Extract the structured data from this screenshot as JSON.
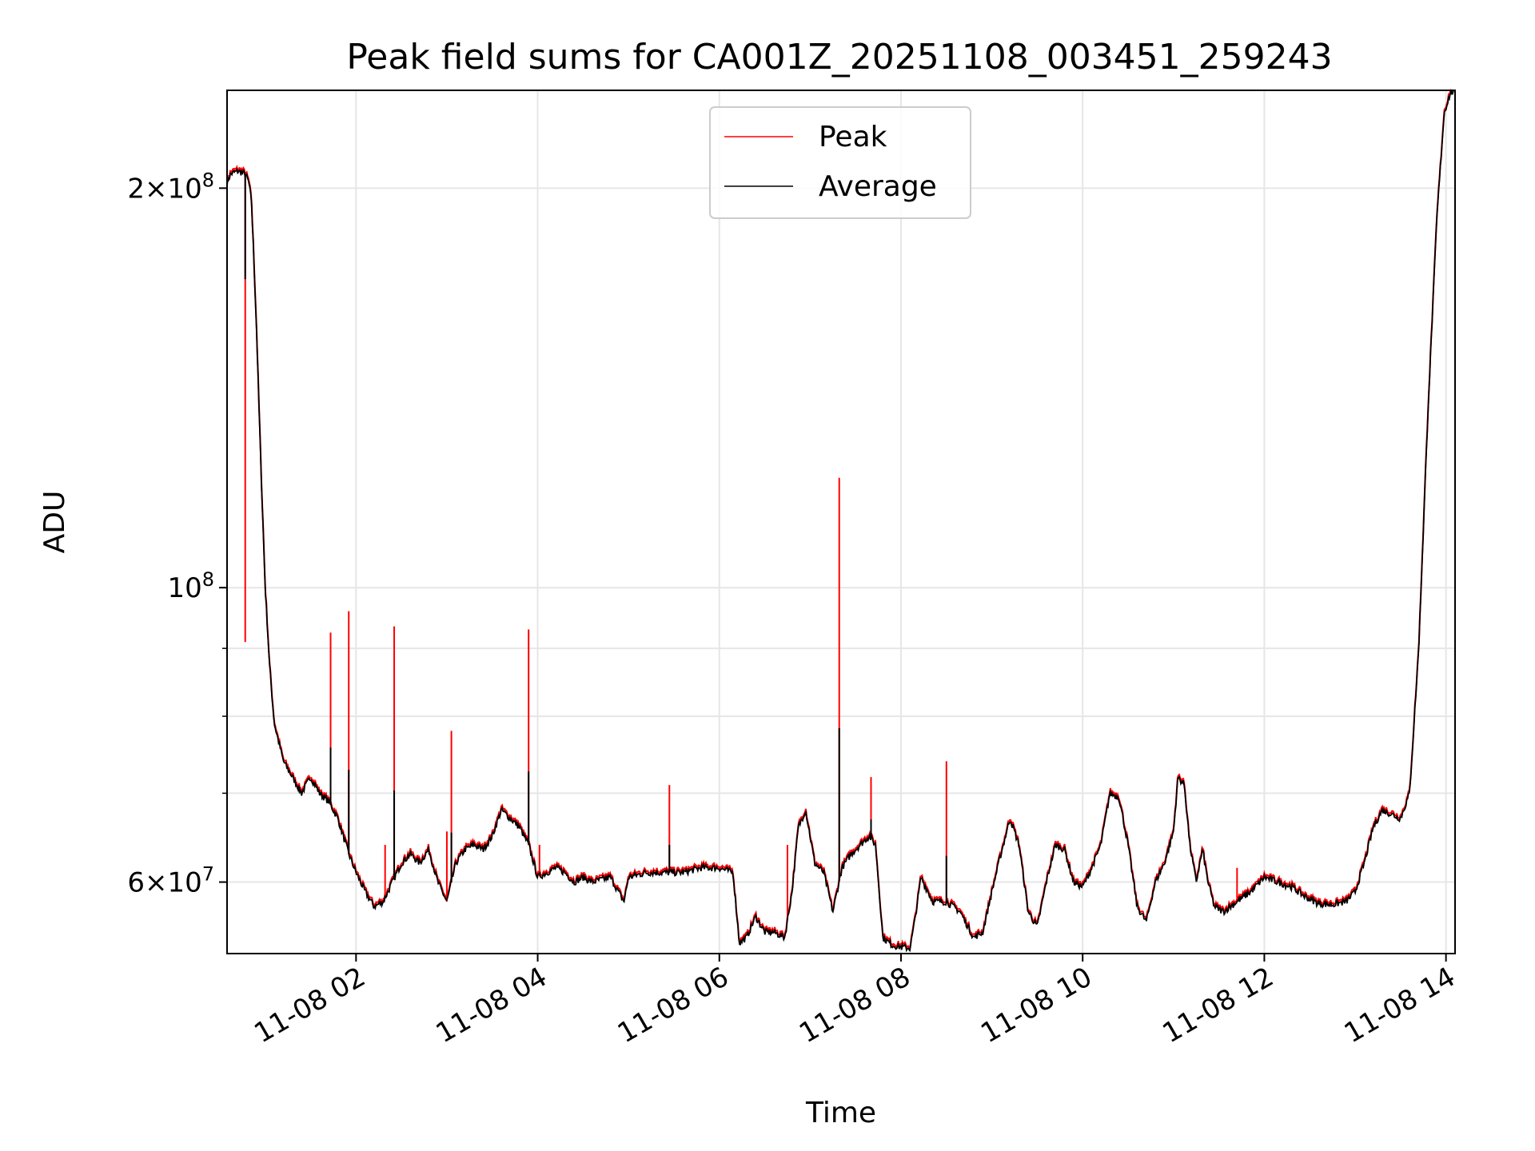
{
  "chart_data": {
    "type": "line",
    "title": "Peak field sums for CA001Z_20251108_003451_259243",
    "xlabel": "Time",
    "ylabel": "ADU",
    "yscale": "log",
    "ylim": [
      53000000,
      237000000
    ],
    "xlim_hours": [
      0.58,
      14.1
    ],
    "grid": true,
    "legend_position": "upper center",
    "x_ticks": [
      {
        "hour": 2,
        "label": "11-08 02"
      },
      {
        "hour": 4,
        "label": "11-08 04"
      },
      {
        "hour": 6,
        "label": "11-08 06"
      },
      {
        "hour": 8,
        "label": "11-08 08"
      },
      {
        "hour": 10,
        "label": "11-08 10"
      },
      {
        "hour": 12,
        "label": "11-08 12"
      },
      {
        "hour": 14,
        "label": "11-08 14"
      }
    ],
    "y_ticks_labeled": [
      {
        "value": 60000000,
        "label_base": "6×10",
        "label_exp": "7"
      },
      {
        "value": 100000000,
        "label_base": "10",
        "label_exp": "8"
      },
      {
        "value": 200000000,
        "label_base": "2×10",
        "label_exp": "8"
      }
    ],
    "y_gridlines_minor": [
      70000000,
      80000000,
      90000000
    ],
    "series": [
      {
        "name": "Peak",
        "color": "#ff0000",
        "spikes": [
          {
            "hour": 0.78,
            "value": 91000000
          },
          {
            "hour": 1.72,
            "value": 92500000
          },
          {
            "hour": 1.92,
            "value": 96000000
          },
          {
            "hour": 2.32,
            "value": 64000000
          },
          {
            "hour": 2.42,
            "value": 93500000
          },
          {
            "hour": 3.0,
            "value": 65500000
          },
          {
            "hour": 3.05,
            "value": 78000000
          },
          {
            "hour": 3.9,
            "value": 93000000
          },
          {
            "hour": 4.02,
            "value": 64000000
          },
          {
            "hour": 5.45,
            "value": 71000000
          },
          {
            "hour": 6.75,
            "value": 64000000
          },
          {
            "hour": 7.32,
            "value": 121000000
          },
          {
            "hour": 7.67,
            "value": 72000000
          },
          {
            "hour": 8.5,
            "value": 74000000
          },
          {
            "hour": 11.7,
            "value": 61500000
          }
        ]
      },
      {
        "name": "Average",
        "color": "#000000",
        "points": [
          [
            0.58,
            202000000
          ],
          [
            0.62,
            205000000
          ],
          [
            0.7,
            206000000
          ],
          [
            0.78,
            205000000
          ],
          [
            0.82,
            202000000
          ],
          [
            0.85,
            195000000
          ],
          [
            0.9,
            160000000
          ],
          [
            0.95,
            125000000
          ],
          [
            1.0,
            100000000
          ],
          [
            1.05,
            87000000
          ],
          [
            1.1,
            79000000
          ],
          [
            1.2,
            74000000
          ],
          [
            1.3,
            72000000
          ],
          [
            1.4,
            70000000
          ],
          [
            1.5,
            72000000
          ],
          [
            1.6,
            70000000
          ],
          [
            1.7,
            69000000
          ],
          [
            1.8,
            67000000
          ],
          [
            1.92,
            63000000
          ],
          [
            2.0,
            61000000
          ],
          [
            2.1,
            59000000
          ],
          [
            2.2,
            57500000
          ],
          [
            2.3,
            58000000
          ],
          [
            2.4,
            60000000
          ],
          [
            2.5,
            62000000
          ],
          [
            2.6,
            63000000
          ],
          [
            2.7,
            62000000
          ],
          [
            2.8,
            63500000
          ],
          [
            2.9,
            60000000
          ],
          [
            3.0,
            58000000
          ],
          [
            3.1,
            62000000
          ],
          [
            3.2,
            63500000
          ],
          [
            3.3,
            64000000
          ],
          [
            3.4,
            63500000
          ],
          [
            3.5,
            65000000
          ],
          [
            3.6,
            68000000
          ],
          [
            3.7,
            67000000
          ],
          [
            3.8,
            66000000
          ],
          [
            3.9,
            64000000
          ],
          [
            4.0,
            60500000
          ],
          [
            4.1,
            61000000
          ],
          [
            4.2,
            61500000
          ],
          [
            4.3,
            61000000
          ],
          [
            4.4,
            60000000
          ],
          [
            4.5,
            60500000
          ],
          [
            4.6,
            60000000
          ],
          [
            4.8,
            60500000
          ],
          [
            4.95,
            58000000
          ],
          [
            5.0,
            60500000
          ],
          [
            5.2,
            61000000
          ],
          [
            5.4,
            61000000
          ],
          [
            5.6,
            61000000
          ],
          [
            5.8,
            61500000
          ],
          [
            6.0,
            61500000
          ],
          [
            6.15,
            61000000
          ],
          [
            6.22,
            54000000
          ],
          [
            6.3,
            54500000
          ],
          [
            6.4,
            56500000
          ],
          [
            6.5,
            55000000
          ],
          [
            6.6,
            55000000
          ],
          [
            6.72,
            54500000
          ],
          [
            6.8,
            59000000
          ],
          [
            6.87,
            66000000
          ],
          [
            6.95,
            68000000
          ],
          [
            7.05,
            62000000
          ],
          [
            7.15,
            61000000
          ],
          [
            7.25,
            57000000
          ],
          [
            7.35,
            61500000
          ],
          [
            7.45,
            63000000
          ],
          [
            7.55,
            64000000
          ],
          [
            7.65,
            65000000
          ],
          [
            7.72,
            64000000
          ],
          [
            7.8,
            54500000
          ],
          [
            7.9,
            53800000
          ],
          [
            8.0,
            53600000
          ],
          [
            8.1,
            53500000
          ],
          [
            8.15,
            56000000
          ],
          [
            8.22,
            60500000
          ],
          [
            8.35,
            58000000
          ],
          [
            8.5,
            58000000
          ],
          [
            8.65,
            57000000
          ],
          [
            8.8,
            54500000
          ],
          [
            8.9,
            55000000
          ],
          [
            9.0,
            59000000
          ],
          [
            9.1,
            63000000
          ],
          [
            9.2,
            67000000
          ],
          [
            9.3,
            64000000
          ],
          [
            9.4,
            57000000
          ],
          [
            9.5,
            55500000
          ],
          [
            9.6,
            60000000
          ],
          [
            9.7,
            64000000
          ],
          [
            9.8,
            63500000
          ],
          [
            9.9,
            60000000
          ],
          [
            10.0,
            59500000
          ],
          [
            10.1,
            61500000
          ],
          [
            10.2,
            64000000
          ],
          [
            10.3,
            70000000
          ],
          [
            10.4,
            69500000
          ],
          [
            10.5,
            64000000
          ],
          [
            10.6,
            57500000
          ],
          [
            10.7,
            56000000
          ],
          [
            10.8,
            60000000
          ],
          [
            10.9,
            62000000
          ],
          [
            11.0,
            65500000
          ],
          [
            11.05,
            72000000
          ],
          [
            11.12,
            71000000
          ],
          [
            11.18,
            64000000
          ],
          [
            11.25,
            60000000
          ],
          [
            11.32,
            63500000
          ],
          [
            11.38,
            60000000
          ],
          [
            11.45,
            57500000
          ],
          [
            11.55,
            57000000
          ],
          [
            11.7,
            58000000
          ],
          [
            11.85,
            59000000
          ],
          [
            12.0,
            60500000
          ],
          [
            12.15,
            60000000
          ],
          [
            12.3,
            59500000
          ],
          [
            12.45,
            58500000
          ],
          [
            12.6,
            57800000
          ],
          [
            12.75,
            57700000
          ],
          [
            12.9,
            58000000
          ],
          [
            13.0,
            59000000
          ],
          [
            13.1,
            62000000
          ],
          [
            13.2,
            66000000
          ],
          [
            13.3,
            68000000
          ],
          [
            13.4,
            67500000
          ],
          [
            13.5,
            67000000
          ],
          [
            13.6,
            70000000
          ],
          [
            13.7,
            90000000
          ],
          [
            13.8,
            135000000
          ],
          [
            13.9,
            190000000
          ],
          [
            13.98,
            228000000
          ],
          [
            14.05,
            236000000
          ],
          [
            14.1,
            237000000
          ]
        ]
      }
    ]
  }
}
